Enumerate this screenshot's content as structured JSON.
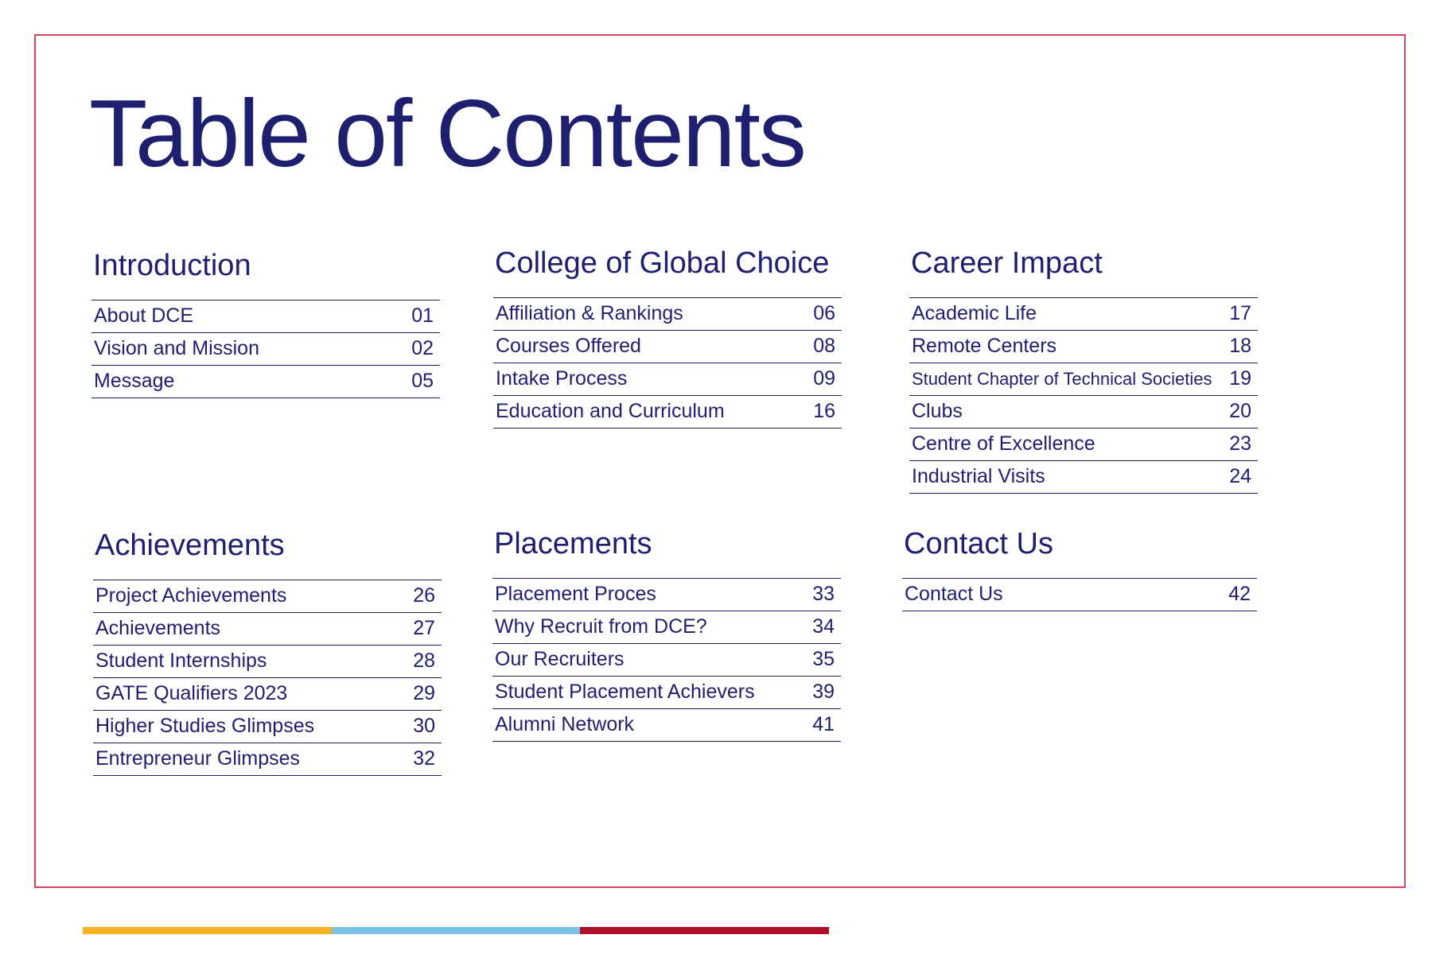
{
  "page": {
    "title": "Table of Contents"
  },
  "sections": [
    {
      "heading": "Introduction",
      "items": [
        {
          "label": "About DCE",
          "page": "01"
        },
        {
          "label": "Vision and Mission",
          "page": "02"
        },
        {
          "label": "Message",
          "page": "05"
        }
      ]
    },
    {
      "heading": "College of Global Choice",
      "items": [
        {
          "label": "Affiliation & Rankings",
          "page": "06"
        },
        {
          "label": "Courses Offered",
          "page": "08"
        },
        {
          "label": "Intake Process",
          "page": "09"
        },
        {
          "label": "Education and Curriculum",
          "page": "16"
        }
      ]
    },
    {
      "heading": "Career Impact",
      "items": [
        {
          "label": "Academic Life",
          "page": "17"
        },
        {
          "label": "Remote Centers",
          "page": "18"
        },
        {
          "label": "Student Chapter of Technical Societies",
          "page": "19"
        },
        {
          "label": "Clubs",
          "page": "20"
        },
        {
          "label": "Centre of Excellence",
          "page": "23"
        },
        {
          "label": "Industrial Visits",
          "page": "24"
        }
      ]
    },
    {
      "heading": "Achievements",
      "items": [
        {
          "label": "Project Achievements",
          "page": "26"
        },
        {
          "label": "Achievements",
          "page": "27"
        },
        {
          "label": "Student Internships",
          "page": "28"
        },
        {
          "label": "GATE Qualifiers 2023",
          "page": "29"
        },
        {
          "label": "Higher Studies Glimpses",
          "page": "30"
        },
        {
          "label": "Entrepreneur Glimpses",
          "page": "32"
        }
      ]
    },
    {
      "heading": "Placements",
      "items": [
        {
          "label": "Placement Proces",
          "page": "33"
        },
        {
          "label": "Why Recruit from DCE?",
          "page": "34"
        },
        {
          "label": "Our Recruiters",
          "page": "35"
        },
        {
          "label": "Student Placement Achievers",
          "page": "39"
        },
        {
          "label": "Alumni Network",
          "page": "41"
        }
      ]
    },
    {
      "heading": "Contact Us",
      "items": [
        {
          "label": "Contact Us",
          "page": "42"
        }
      ]
    }
  ],
  "colors": {
    "text": "#1f1f6f",
    "frame": "#d9415c",
    "bar_1": "#f5b324",
    "bar_2": "#7cc3e6",
    "bar_3": "#b0102a"
  }
}
